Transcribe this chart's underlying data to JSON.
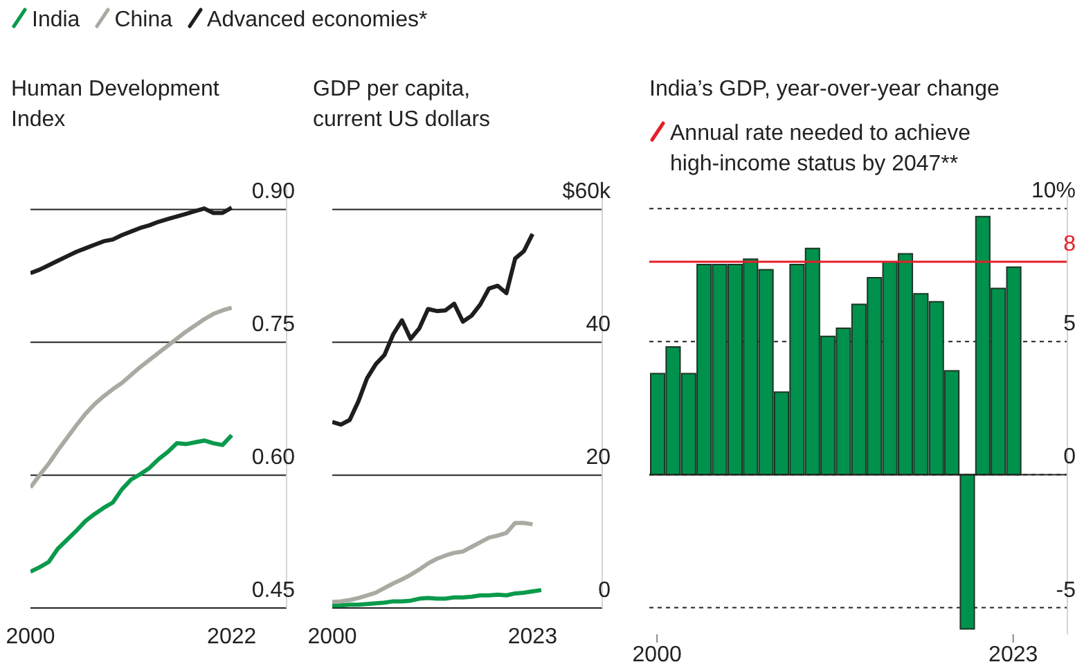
{
  "chart_data": [
    {
      "type": "line",
      "title": "Human Development Index",
      "legend": "top",
      "grid": "y",
      "marker": "none",
      "line_style": "solid",
      "xlim": [
        2000,
        2028
      ],
      "xticks": [
        2000,
        2022
      ],
      "ylim": [
        0.45,
        0.93
      ],
      "yticks": [
        0.45,
        {
          "value": 0.6,
          "label": "0.60"
        },
        0.75,
        {
          "value": 0.9,
          "label": "0.90"
        }
      ],
      "x": [
        2000,
        2001,
        2002,
        2003,
        2004,
        2005,
        2006,
        2007,
        2008,
        2009,
        2010,
        2011,
        2012,
        2013,
        2014,
        2015,
        2016,
        2017,
        2018,
        2019,
        2020,
        2021,
        2022
      ],
      "series": [
        {
          "name": "India",
          "color": "#0a9a4c",
          "values": [
            0.491,
            0.496,
            0.502,
            0.517,
            0.527,
            0.537,
            0.548,
            0.556,
            0.563,
            0.569,
            0.584,
            0.595,
            0.601,
            0.608,
            0.618,
            0.626,
            0.636,
            0.635,
            0.637,
            0.639,
            0.636,
            0.634,
            0.645
          ]
        },
        {
          "name": "China",
          "color": "#aaaaa2",
          "values": [
            0.586,
            0.6,
            0.613,
            0.628,
            0.642,
            0.656,
            0.669,
            0.68,
            0.689,
            0.697,
            0.704,
            0.713,
            0.722,
            0.73,
            0.738,
            0.746,
            0.754,
            0.762,
            0.769,
            0.776,
            0.782,
            0.786,
            0.789
          ]
        },
        {
          "name": "Advanced economies*",
          "color": "#1e1e1e",
          "values": [
            0.828,
            0.832,
            0.837,
            0.842,
            0.847,
            0.852,
            0.856,
            0.86,
            0.864,
            0.866,
            0.871,
            0.875,
            0.879,
            0.882,
            0.886,
            0.889,
            0.892,
            0.895,
            0.898,
            0.901,
            0.896,
            0.896,
            0.902
          ]
        }
      ]
    },
    {
      "type": "line",
      "title": "GDP per capita, current US dollars",
      "grid": "y",
      "marker": "none",
      "line_style": "solid",
      "xlim": [
        2000,
        2031
      ],
      "xticks": [
        2000,
        2023
      ],
      "ylim": [
        0,
        64
      ],
      "yticks": [
        0,
        20,
        40,
        {
          "value": 60,
          "label": "$60k"
        }
      ],
      "x": [
        2000,
        2001,
        2002,
        2003,
        2004,
        2005,
        2006,
        2007,
        2008,
        2009,
        2010,
        2011,
        2012,
        2013,
        2014,
        2015,
        2016,
        2017,
        2018,
        2019,
        2020,
        2021,
        2022,
        2023,
        2024
      ],
      "series": [
        {
          "color": "#0a9a4c",
          "values": [
            0.4,
            0.4,
            0.5,
            0.5,
            0.6,
            0.7,
            0.8,
            1.0,
            1.0,
            1.1,
            1.4,
            1.5,
            1.4,
            1.4,
            1.6,
            1.6,
            1.7,
            1.9,
            1.9,
            2.0,
            1.9,
            2.2,
            2.3,
            2.5,
            2.7
          ]
        },
        {
          "color": "#aaaaa2",
          "values": [
            0.9,
            1.0,
            1.2,
            1.5,
            1.9,
            2.3,
            3.0,
            3.7,
            4.3,
            5.0,
            5.8,
            6.7,
            7.4,
            7.9,
            8.3,
            8.5,
            9.2,
            9.9,
            10.6,
            10.9,
            11.3,
            12.8,
            12.8,
            12.6,
            null
          ]
        },
        {
          "color": "#1e1e1e",
          "values": [
            28.0,
            27.6,
            28.3,
            31.1,
            34.6,
            36.7,
            38.1,
            41.2,
            43.3,
            40.5,
            42.1,
            45.0,
            44.7,
            44.8,
            45.8,
            43.1,
            44.0,
            45.7,
            48.1,
            48.5,
            47.4,
            52.6,
            53.7,
            56.3,
            null
          ]
        }
      ]
    },
    {
      "type": "bar",
      "title": "India’s GDP, year-over-year change",
      "grid": "y",
      "xlim": [
        1999.5,
        2026.5
      ],
      "xticks": [
        2000,
        2023
      ],
      "ylim": [
        -6,
        10.5
      ],
      "yticks": [
        -5,
        0,
        5,
        8,
        {
          "value": 10,
          "label": "10%"
        }
      ],
      "x": [
        2000,
        2001,
        2002,
        2003,
        2004,
        2005,
        2006,
        2007,
        2008,
        2009,
        2010,
        2011,
        2012,
        2013,
        2014,
        2015,
        2016,
        2017,
        2018,
        2019,
        2020,
        2021,
        2022,
        2023
      ],
      "series": [
        {
          "color": "#00914c",
          "values": [
            3.8,
            4.8,
            3.8,
            7.9,
            7.9,
            7.9,
            8.1,
            7.7,
            3.1,
            7.9,
            8.5,
            5.2,
            5.5,
            6.4,
            7.4,
            8.0,
            8.3,
            6.8,
            6.5,
            3.9,
            -5.8,
            9.7,
            7.0,
            7.8
          ]
        }
      ],
      "ref_lines": [
        {
          "axis": "y",
          "value": 8,
          "label": "Annual rate needed to achieve high-income status by 2047**",
          "color": "#e3202a"
        }
      ]
    }
  ]
}
